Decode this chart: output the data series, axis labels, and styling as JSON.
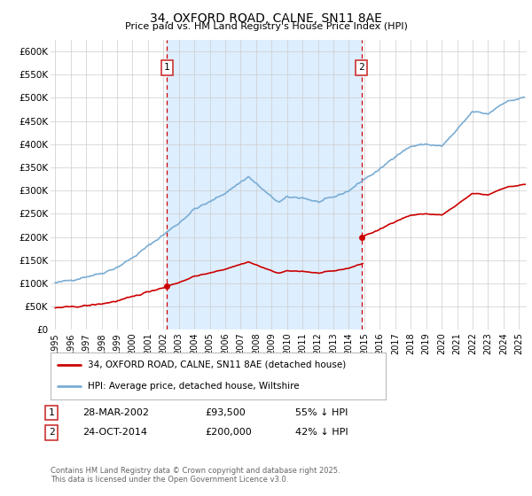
{
  "title": "34, OXFORD ROAD, CALNE, SN11 8AE",
  "subtitle": "Price paid vs. HM Land Registry's House Price Index (HPI)",
  "ylabel_ticks": [
    "£0",
    "£50K",
    "£100K",
    "£150K",
    "£200K",
    "£250K",
    "£300K",
    "£350K",
    "£400K",
    "£450K",
    "£500K",
    "£550K",
    "£600K"
  ],
  "ytick_vals": [
    0,
    50000,
    100000,
    150000,
    200000,
    250000,
    300000,
    350000,
    400000,
    450000,
    500000,
    550000,
    600000
  ],
  "ylim": [
    0,
    625000
  ],
  "sale1": {
    "date_num": 2002.23,
    "price": 93500,
    "label": "1",
    "date_str": "28-MAR-2002",
    "price_str": "£93,500",
    "pct_str": "55% ↓ HPI"
  },
  "sale2": {
    "date_num": 2014.81,
    "price": 200000,
    "label": "2",
    "date_str": "24-OCT-2014",
    "price_str": "£200,000",
    "pct_str": "42% ↓ HPI"
  },
  "legend_line1": "34, OXFORD ROAD, CALNE, SN11 8AE (detached house)",
  "legend_line2": "HPI: Average price, detached house, Wiltshire",
  "footer": "Contains HM Land Registry data © Crown copyright and database right 2025.\nThis data is licensed under the Open Government Licence v3.0.",
  "line_color_red": "#cc0000",
  "line_color_blue": "#7aadd4",
  "shade_color": "#ddeeff",
  "bg_color": "#ffffff",
  "grid_color": "#cccccc",
  "dashed_line_color": "#cc0000",
  "xlim_start": 1994.7,
  "xlim_end": 2025.5,
  "xticks": [
    1995,
    1996,
    1997,
    1998,
    1999,
    2000,
    2001,
    2002,
    2003,
    2004,
    2005,
    2006,
    2007,
    2008,
    2009,
    2010,
    2011,
    2012,
    2013,
    2014,
    2015,
    2016,
    2017,
    2018,
    2019,
    2020,
    2021,
    2022,
    2023,
    2024,
    2025
  ]
}
